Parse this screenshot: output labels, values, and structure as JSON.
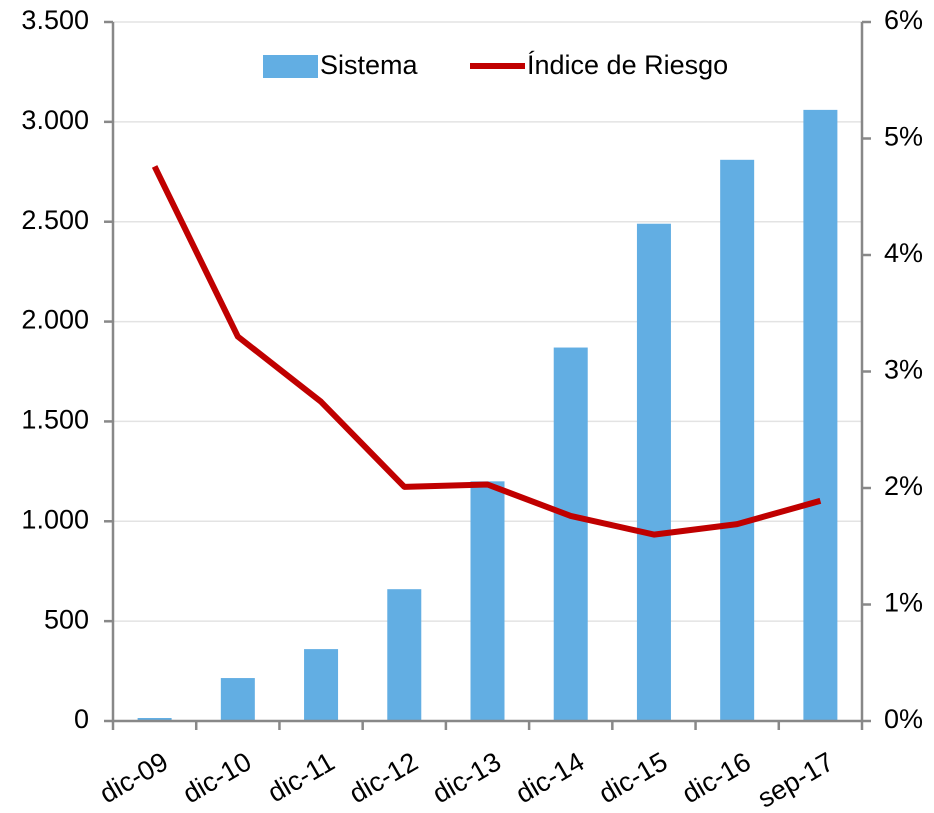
{
  "chart_data": {
    "type": "bar",
    "categories": [
      "dic-09",
      "dic-10",
      "dic-11",
      "dic-12",
      "dic-13",
      "dic-14",
      "dic-15",
      "dic-16",
      "sep-17"
    ],
    "series": [
      {
        "name": "Sistema",
        "type": "bar",
        "color": "#62aee3",
        "values": [
          15,
          215,
          360,
          660,
          1200,
          1870,
          2490,
          2810,
          3060
        ]
      },
      {
        "name": "Índice de Riesgo",
        "type": "line",
        "axis": "y2",
        "color": "#c00000",
        "values": [
          4.76,
          3.3,
          2.74,
          2.01,
          2.03,
          1.76,
          1.6,
          1.69,
          1.89
        ]
      }
    ],
    "ylim": [
      0,
      3500
    ],
    "yticks": [
      0,
      500,
      {
        "value": 1000,
        "label": "1.000"
      },
      {
        "value": 1500,
        "label": "1.500"
      },
      {
        "value": 2000,
        "label": "2.000"
      },
      {
        "value": 2500,
        "label": "2.500"
      },
      {
        "value": 3000,
        "label": "3.000"
      },
      {
        "value": 3500,
        "label": "3.500"
      }
    ],
    "y2lim": [
      0,
      6
    ],
    "y2ticks": [
      {
        "value": 0,
        "label": "0%"
      },
      {
        "value": 1,
        "label": "1%"
      },
      {
        "value": 2,
        "label": "2%"
      },
      {
        "value": 3,
        "label": "3%"
      },
      {
        "value": 4,
        "label": "4%"
      },
      {
        "value": 5,
        "label": "5%"
      },
      {
        "value": 6,
        "label": "6%"
      }
    ],
    "grid": true,
    "legend": "top"
  }
}
